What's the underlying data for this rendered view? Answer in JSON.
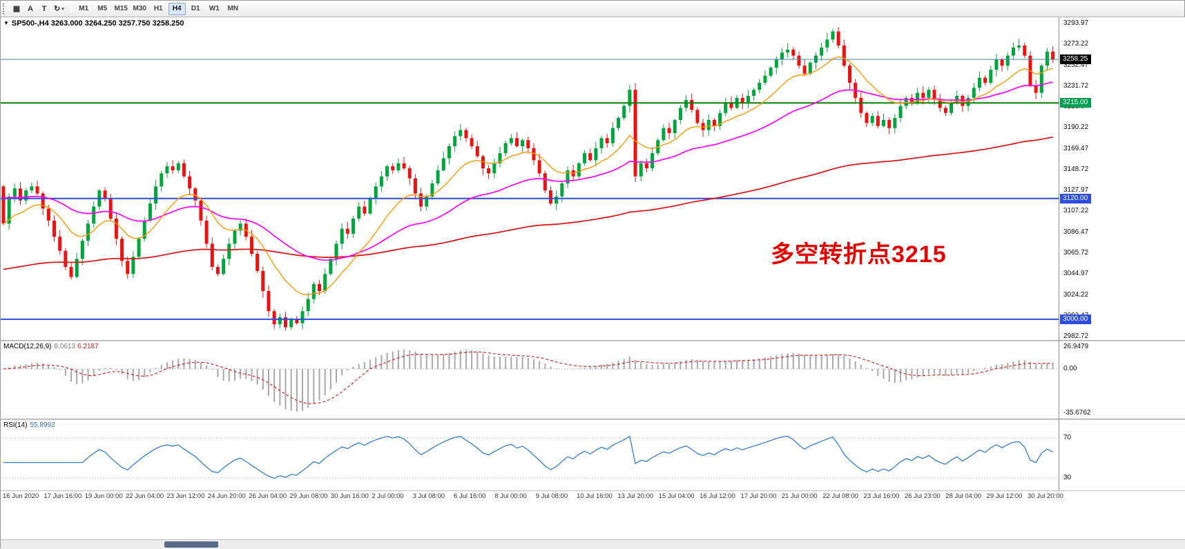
{
  "toolbar": {
    "icon_buttons": [
      {
        "name": "chart-grid-icon",
        "glyph": "▦"
      },
      {
        "name": "text-annotation-icon",
        "glyph": "A"
      },
      {
        "name": "text-tool-icon",
        "glyph": "T"
      },
      {
        "name": "cycle-arrows-icon",
        "glyph": "↻",
        "caret": true
      }
    ],
    "dropdown_caret": "▾",
    "timeframes": [
      "M1",
      "M5",
      "M15",
      "M30",
      "H1",
      "H4",
      "D1",
      "W1",
      "MN"
    ],
    "active_timeframe": "H4"
  },
  "chart": {
    "collapse_glyph": "▼",
    "header": "SP500-,H4  3263.000 3264.250 3257.750 3258.250",
    "annotation": {
      "text": "多空转折点3215",
      "color": "#e60000"
    },
    "colors": {
      "up": "#00a63c",
      "down": "#ea1313",
      "ma_fast": "#ff9900",
      "ma_mid": "#ff00ff",
      "ma_slow": "#e01010"
    },
    "price_axis_labels": [
      "3293.97",
      "3273.22",
      "3252.47",
      "3231.72",
      "3210.97",
      "3190.22",
      "3169.47",
      "3148.72",
      "3127.97",
      "3107.22",
      "3086.47",
      "3065.72",
      "3044.97",
      "3024.22",
      "3003.47",
      "2982.72"
    ],
    "price_tags": [
      {
        "label": "3258.25",
        "price": 3258.25,
        "bg": "#000000"
      },
      {
        "label": "3215.00",
        "price": 3215.0,
        "bg": "#00a050"
      },
      {
        "label": "3120.00",
        "price": 3120.0,
        "bg": "#2d4de0"
      },
      {
        "label": "3000.00",
        "price": 3000.0,
        "bg": "#2d4de0"
      }
    ],
    "hlines": [
      {
        "price": 3258.25,
        "color": "#4682b4",
        "width": 1
      },
      {
        "price": 3215.0,
        "color": "#008000",
        "width": 2
      },
      {
        "price": 3120.0,
        "color": "#2d4de0",
        "width": 2
      },
      {
        "price": 3000.0,
        "color": "#2d4de0",
        "width": 2
      }
    ]
  },
  "chart_data": {
    "type": "candlestick",
    "symbol": "SP500-",
    "timeframe": "H4",
    "last_ohlc": {
      "open": 3263.0,
      "high": 3264.25,
      "low": 3257.75,
      "close": 3258.25
    },
    "y_axis": {
      "top": 3293.97,
      "bottom": 2982.72
    },
    "closes": [
      3095,
      3122,
      3130,
      3118,
      3128,
      3132,
      3125,
      3110,
      3098,
      3082,
      3068,
      3052,
      3042,
      3060,
      3078,
      3095,
      3112,
      3128,
      3120,
      3100,
      3080,
      3058,
      3045,
      3062,
      3080,
      3098,
      3115,
      3132,
      3145,
      3152,
      3148,
      3155,
      3142,
      3130,
      3118,
      3098,
      3075,
      3052,
      3045,
      3060,
      3075,
      3088,
      3095,
      3082,
      3065,
      3048,
      3028,
      3008,
      2995,
      3002,
      2992,
      3000,
      2996,
      3008,
      3020,
      3035,
      3028,
      3045,
      3060,
      3075,
      3090,
      3085,
      3100,
      3112,
      3105,
      3120,
      3132,
      3142,
      3152,
      3148,
      3155,
      3150,
      3140,
      3125,
      3112,
      3122,
      3135,
      3148,
      3160,
      3172,
      3182,
      3188,
      3180,
      3172,
      3162,
      3150,
      3145,
      3155,
      3165,
      3175,
      3180,
      3172,
      3178,
      3170,
      3158,
      3145,
      3128,
      3115,
      3122,
      3135,
      3148,
      3142,
      3155,
      3165,
      3158,
      3170,
      3180,
      3175,
      3190,
      3200,
      3212,
      3228,
      3142,
      3155,
      3150,
      3165,
      3178,
      3190,
      3185,
      3198,
      3210,
      3218,
      3208,
      3195,
      3188,
      3198,
      3192,
      3205,
      3215,
      3210,
      3220,
      3215,
      3222,
      3228,
      3235,
      3242,
      3250,
      3258,
      3265,
      3268,
      3262,
      3252,
      3244,
      3255,
      3262,
      3270,
      3278,
      3286,
      3272,
      3252,
      3235,
      3220,
      3205,
      3195,
      3202,
      3192,
      3198,
      3190,
      3200,
      3212,
      3220,
      3215,
      3225,
      3220,
      3228,
      3218,
      3210,
      3205,
      3215,
      3222,
      3212,
      3220,
      3230,
      3240,
      3235,
      3248,
      3258,
      3252,
      3262,
      3270,
      3272,
      3262,
      3232,
      3225,
      3252,
      3266,
      3258.25
    ],
    "indicators": [
      {
        "name": "MACD",
        "params": [
          12,
          26,
          9
        ],
        "values": [
          8.0613,
          6.2187
        ]
      },
      {
        "name": "RSI",
        "params": [
          14
        ],
        "values": [
          55.8992
        ]
      },
      {
        "name": "moving-averages",
        "colors": [
          "#ff9900",
          "#ff00ff",
          "#e01010"
        ]
      }
    ]
  },
  "macd": {
    "name": "MACD(12,26,9)",
    "value1": "8.0613",
    "value2": "6.2187",
    "axis_labels": [
      "26.9479",
      "0.00",
      "-35.6762"
    ]
  },
  "rsi": {
    "name": "RSI(14)",
    "value": "55.8992",
    "levels": [
      "70",
      "30"
    ]
  },
  "time_axis": [
    "16 Jun 2020",
    "17 Jun 16:00",
    "19 Jun 00:00",
    "22 Jun 04:00",
    "23 Jun 12:00",
    "24 Jun 20:00",
    "26 Jun 04:00",
    "29 Jun 08:00",
    "30 Jun 16:00",
    "2 Jul 00:00",
    "3 Jul 08:00",
    "6 Jul 16:00",
    "8 Jul 00:00",
    "9 Jul 08:00",
    "10 Jul 16:00",
    "13 Jul 20:00",
    "15 Jul 04:00",
    "16 Jul 12:00",
    "17 Jul 20:00",
    "21 Jul 00:00",
    "22 Jul 08:00",
    "23 Jul 16:00",
    "26 Jul 23:00",
    "28 Jul 04:00",
    "29 Jul 12:00",
    "30 Jul 20:00"
  ]
}
